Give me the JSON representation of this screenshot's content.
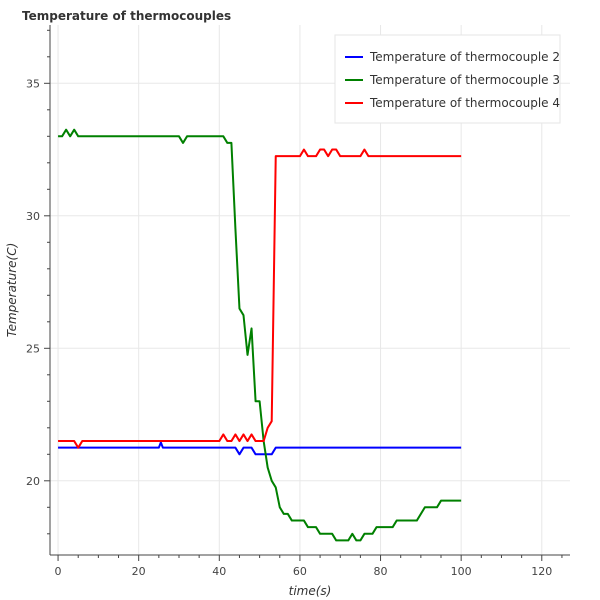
{
  "chart_data": {
    "type": "line",
    "title": "Temperature of thermocouples",
    "xlabel": "time(s)",
    "ylabel": "Temperature(C)",
    "xlim": [
      -2,
      127
    ],
    "ylim": [
      17.2,
      37.2
    ],
    "x_ticks": [
      0,
      20,
      40,
      60,
      80,
      100,
      120
    ],
    "y_ticks": [
      20,
      25,
      30,
      35
    ],
    "grid": true,
    "legend_position": "top-right",
    "series": [
      {
        "name": "Temperature of thermocouple 2",
        "color": "#0000ff",
        "points": [
          [
            0,
            21.25
          ],
          [
            25,
            21.25
          ],
          [
            25.5,
            21.45
          ],
          [
            26,
            21.25
          ],
          [
            44,
            21.25
          ],
          [
            45,
            21.0
          ],
          [
            46,
            21.25
          ],
          [
            48,
            21.25
          ],
          [
            49,
            21.0
          ],
          [
            53,
            21.0
          ],
          [
            54,
            21.25
          ],
          [
            100,
            21.25
          ]
        ]
      },
      {
        "name": "Temperature of thermocouple 3",
        "color": "#008000",
        "points": [
          [
            0,
            33.0
          ],
          [
            1,
            33.0
          ],
          [
            2,
            33.25
          ],
          [
            3,
            33.0
          ],
          [
            4,
            33.25
          ],
          [
            5,
            33.0
          ],
          [
            30,
            33.0
          ],
          [
            31,
            32.75
          ],
          [
            32,
            33.0
          ],
          [
            41,
            33.0
          ],
          [
            42,
            32.75
          ],
          [
            43,
            32.75
          ],
          [
            44,
            29.5
          ],
          [
            45,
            26.5
          ],
          [
            46,
            26.25
          ],
          [
            47,
            24.75
          ],
          [
            48,
            25.75
          ],
          [
            49,
            23.0
          ],
          [
            50,
            23.0
          ],
          [
            51,
            21.5
          ],
          [
            52,
            20.5
          ],
          [
            53,
            20.0
          ],
          [
            54,
            19.75
          ],
          [
            55,
            19.0
          ],
          [
            56,
            18.75
          ],
          [
            57,
            18.75
          ],
          [
            58,
            18.5
          ],
          [
            61,
            18.5
          ],
          [
            62,
            18.25
          ],
          [
            64,
            18.25
          ],
          [
            65,
            18.0
          ],
          [
            68,
            18.0
          ],
          [
            69,
            17.75
          ],
          [
            72,
            17.75
          ],
          [
            73,
            18.0
          ],
          [
            74,
            17.75
          ],
          [
            75,
            17.75
          ],
          [
            76,
            18.0
          ],
          [
            78,
            18.0
          ],
          [
            79,
            18.25
          ],
          [
            83,
            18.25
          ],
          [
            84,
            18.5
          ],
          [
            89,
            18.5
          ],
          [
            91,
            19.0
          ],
          [
            94,
            19.0
          ],
          [
            95,
            19.25
          ],
          [
            100,
            19.25
          ]
        ]
      },
      {
        "name": "Temperature of thermocouple 4",
        "color": "#ff0000",
        "points": [
          [
            0,
            21.5
          ],
          [
            4,
            21.5
          ],
          [
            5,
            21.25
          ],
          [
            6,
            21.5
          ],
          [
            40,
            21.5
          ],
          [
            41,
            21.75
          ],
          [
            42,
            21.5
          ],
          [
            43,
            21.5
          ],
          [
            44,
            21.75
          ],
          [
            45,
            21.5
          ],
          [
            46,
            21.75
          ],
          [
            47,
            21.5
          ],
          [
            48,
            21.75
          ],
          [
            49,
            21.5
          ],
          [
            51,
            21.5
          ],
          [
            52,
            22.0
          ],
          [
            53,
            22.25
          ],
          [
            54,
            32.25
          ],
          [
            60,
            32.25
          ],
          [
            61,
            32.5
          ],
          [
            62,
            32.25
          ],
          [
            64,
            32.25
          ],
          [
            65,
            32.5
          ],
          [
            66,
            32.5
          ],
          [
            67,
            32.25
          ],
          [
            68,
            32.5
          ],
          [
            69,
            32.5
          ],
          [
            70,
            32.25
          ],
          [
            75,
            32.25
          ],
          [
            76,
            32.5
          ],
          [
            77,
            32.25
          ],
          [
            100,
            32.25
          ]
        ]
      }
    ]
  }
}
